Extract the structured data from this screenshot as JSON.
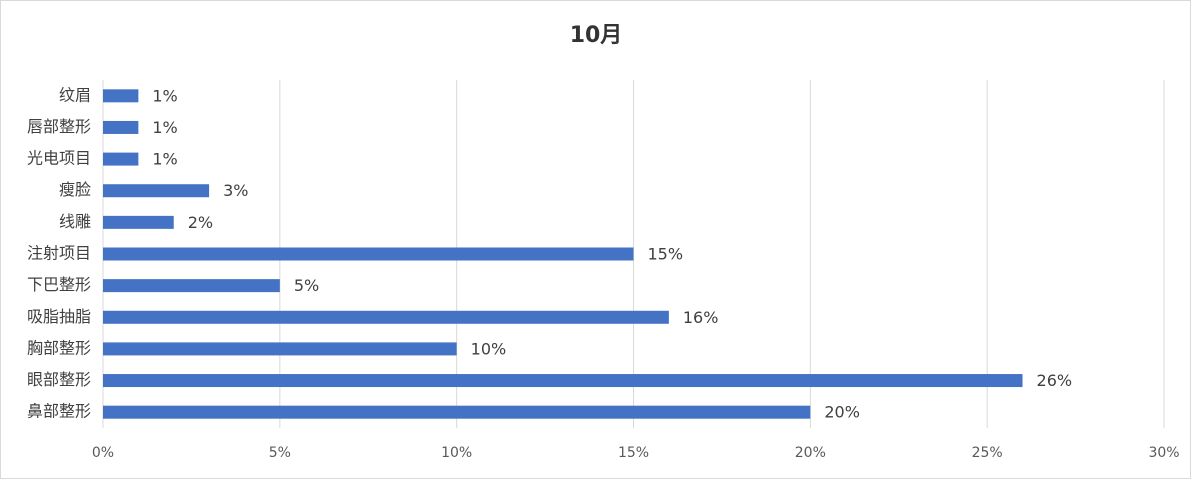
{
  "chart_data": {
    "type": "bar",
    "orientation": "horizontal",
    "title": "10月",
    "categories": [
      "纹眉",
      "唇部整形",
      "光电项目",
      "瘦脸",
      "线雕",
      "注射项目",
      "下巴整形",
      "吸脂抽脂",
      "胸部整形",
      "眼部整形",
      "鼻部整形"
    ],
    "values": [
      1,
      1,
      1,
      3,
      2,
      15,
      5,
      16,
      10,
      26,
      20
    ],
    "value_labels": [
      "1%",
      "1%",
      "1%",
      "3%",
      "2%",
      "15%",
      "5%",
      "16%",
      "10%",
      "26%",
      "20%"
    ],
    "color": "#4472c4",
    "xlim": [
      0,
      30
    ],
    "xticks": [
      {
        "value": 0,
        "label": "0%"
      },
      {
        "value": 5,
        "label": "5%"
      },
      {
        "value": 10,
        "label": "10%"
      },
      {
        "value": 15,
        "label": "15%"
      },
      {
        "value": 20,
        "label": "20%"
      },
      {
        "value": 25,
        "label": "25%"
      },
      {
        "value": 30,
        "label": "30%"
      }
    ],
    "grid": true
  }
}
